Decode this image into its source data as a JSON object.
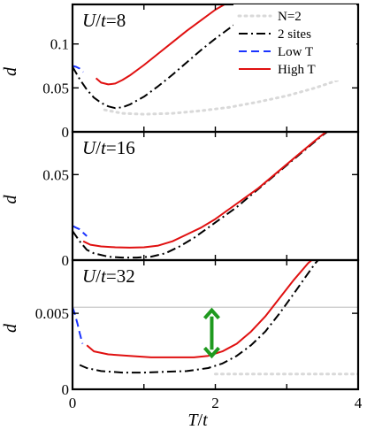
{
  "chart_data": [
    {
      "type": "line",
      "title": "U/t=8",
      "title_parts": {
        "U": "U",
        "slash": "/",
        "t": "t",
        "rest": "=8"
      },
      "xlabel": "",
      "ylabel": "d",
      "xlim": [
        0,
        4
      ],
      "ylim": [
        0,
        0.145
      ],
      "yticks": [
        {
          "value": 0,
          "label": "0"
        },
        {
          "value": 0.05,
          "label": "0.05"
        },
        {
          "value": 0.1,
          "label": "0.1"
        }
      ],
      "series": [
        {
          "name": "N=2",
          "style": "dotted",
          "color": "#d9d9d9",
          "x": [
            0.45,
            0.7,
            1.0,
            1.4,
            1.8,
            2.2,
            2.6,
            3.0,
            3.4,
            3.8,
            4.0
          ],
          "y": [
            0.025,
            0.021,
            0.02,
            0.021,
            0.024,
            0.028,
            0.034,
            0.041,
            0.05,
            0.061,
            0.068
          ]
        },
        {
          "name": "2 sites",
          "style": "dashdot",
          "color": "#000000",
          "x": [
            0.0,
            0.1,
            0.2,
            0.3,
            0.4,
            0.5,
            0.6,
            0.7,
            0.8,
            1.0,
            1.2,
            1.4,
            1.6,
            1.8,
            2.0,
            2.2,
            2.4,
            2.6,
            2.8,
            2.95
          ],
          "y": [
            0.074,
            0.06,
            0.048,
            0.039,
            0.033,
            0.029,
            0.027,
            0.028,
            0.031,
            0.04,
            0.052,
            0.065,
            0.079,
            0.093,
            0.106,
            0.118,
            0.129,
            0.138,
            0.143,
            0.145
          ]
        },
        {
          "name": "Low T",
          "style": "dashed",
          "color": "#1a33ff",
          "x": [
            0.0,
            0.05,
            0.1,
            0.15
          ],
          "y": [
            0.075,
            0.074,
            0.072,
            0.068
          ]
        },
        {
          "name": "High T",
          "style": "solid",
          "color": "#e01010",
          "x": [
            0.33,
            0.4,
            0.5,
            0.6,
            0.7,
            0.8,
            1.0,
            1.2,
            1.4,
            1.6,
            1.8,
            2.0,
            2.15
          ],
          "y": [
            0.061,
            0.056,
            0.054,
            0.055,
            0.059,
            0.064,
            0.076,
            0.089,
            0.102,
            0.115,
            0.127,
            0.139,
            0.146
          ]
        }
      ]
    },
    {
      "type": "line",
      "title": "U/t=16",
      "title_parts": {
        "U": "U",
        "slash": "/",
        "t": "t",
        "rest": "=16"
      },
      "xlabel": "",
      "ylabel": "d",
      "xlim": [
        0,
        4
      ],
      "ylim": [
        0,
        0.075
      ],
      "yticks": [
        {
          "value": 0,
          "label": "0"
        },
        {
          "value": 0.05,
          "label": "0.05"
        }
      ],
      "series": [
        {
          "name": "2 sites",
          "style": "dashdot",
          "color": "#000000",
          "x": [
            0.0,
            0.1,
            0.2,
            0.3,
            0.5,
            0.7,
            0.9,
            1.1,
            1.3,
            1.5,
            1.7,
            1.9,
            2.1,
            2.3,
            2.5,
            2.7,
            2.9,
            3.1,
            3.3,
            3.5,
            3.6
          ],
          "y": [
            0.017,
            0.011,
            0.006,
            0.004,
            0.002,
            0.0015,
            0.0015,
            0.002,
            0.004,
            0.008,
            0.013,
            0.019,
            0.025,
            0.031,
            0.038,
            0.045,
            0.052,
            0.059,
            0.066,
            0.073,
            0.076
          ]
        },
        {
          "name": "Low T",
          "style": "dashed",
          "color": "#1a33ff",
          "x": [
            0.0,
            0.05,
            0.1,
            0.15,
            0.2
          ],
          "y": [
            0.02,
            0.019,
            0.018,
            0.016,
            0.014
          ]
        },
        {
          "name": "High T",
          "style": "solid",
          "color": "#e01010",
          "x": [
            0.15,
            0.25,
            0.4,
            0.6,
            0.8,
            1.0,
            1.2,
            1.4,
            1.6,
            1.8,
            2.0,
            2.2,
            2.4,
            2.6,
            2.8,
            3.0,
            3.2,
            3.4,
            3.55
          ],
          "y": [
            0.011,
            0.009,
            0.008,
            0.0075,
            0.0073,
            0.0075,
            0.0085,
            0.011,
            0.015,
            0.019,
            0.024,
            0.03,
            0.036,
            0.042,
            0.049,
            0.056,
            0.063,
            0.07,
            0.075
          ]
        }
      ]
    },
    {
      "type": "line",
      "title": "U/t=32",
      "title_parts": {
        "U": "U",
        "slash": "/",
        "t": "t",
        "rest": "=32"
      },
      "xlabel": "T/t",
      "xlabel_parts": {
        "T": "T",
        "slash": "/",
        "t": "t"
      },
      "ylabel": "d",
      "xlim": [
        0,
        4
      ],
      "ylim": [
        0,
        0.0085
      ],
      "xticks": [
        {
          "value": 0,
          "label": "0"
        },
        {
          "value": 2,
          "label": "2"
        },
        {
          "value": 4,
          "label": "4"
        }
      ],
      "yticks": [
        {
          "value": 0,
          "label": "0"
        },
        {
          "value": 0.005,
          "label": "0.005"
        }
      ],
      "reference_line": {
        "y": 0.0054,
        "color": "#c8c8c8"
      },
      "arrow": {
        "x": 1.95,
        "y_low": 0.0022,
        "y_high": 0.0052,
        "color": "#1f9a1f"
      },
      "series": [
        {
          "name": "N=2",
          "style": "dotted",
          "color": "#d9d9d9",
          "x": [
            2.0,
            2.4,
            2.8,
            3.2,
            3.6,
            4.0
          ],
          "y": [
            0.001,
            0.001,
            0.001,
            0.001,
            0.001,
            0.001
          ]
        },
        {
          "name": "2 sites",
          "style": "dashdot",
          "color": "#000000",
          "x": [
            0.1,
            0.2,
            0.4,
            0.7,
            1.0,
            1.3,
            1.6,
            1.9,
            2.1,
            2.3,
            2.5,
            2.7,
            2.9,
            3.1,
            3.25,
            3.4,
            3.5
          ],
          "y": [
            0.0016,
            0.0014,
            0.0012,
            0.0011,
            0.0011,
            0.00115,
            0.0012,
            0.0014,
            0.0017,
            0.0022,
            0.0029,
            0.0038,
            0.005,
            0.0063,
            0.0073,
            0.0083,
            0.0088
          ]
        },
        {
          "name": "Low T",
          "style": "dashed",
          "color": "#1a33ff",
          "x": [
            0.0,
            0.03,
            0.07,
            0.1,
            0.14
          ],
          "y": [
            0.0054,
            0.005,
            0.0043,
            0.0037,
            0.003
          ]
        },
        {
          "name": "High T",
          "style": "solid",
          "color": "#e01010",
          "x": [
            0.2,
            0.3,
            0.5,
            0.8,
            1.1,
            1.4,
            1.7,
            1.9,
            2.1,
            2.3,
            2.5,
            2.7,
            2.9,
            3.1,
            3.3,
            3.45
          ],
          "y": [
            0.0029,
            0.0025,
            0.0023,
            0.0022,
            0.0021,
            0.0021,
            0.0021,
            0.0022,
            0.0025,
            0.003,
            0.0038,
            0.0048,
            0.006,
            0.0072,
            0.0083,
            0.0089
          ]
        }
      ]
    }
  ],
  "legend": {
    "placement": "top-right of top panel",
    "entries": [
      {
        "label": "N=2",
        "style": "dotted",
        "color": "#d9d9d9"
      },
      {
        "label": "2 sites",
        "style": "dashdot",
        "color": "#000000"
      },
      {
        "label": "Low T",
        "style": "dashed",
        "color": "#1a33ff"
      },
      {
        "label": "High T",
        "style": "solid",
        "color": "#e01010"
      }
    ]
  }
}
